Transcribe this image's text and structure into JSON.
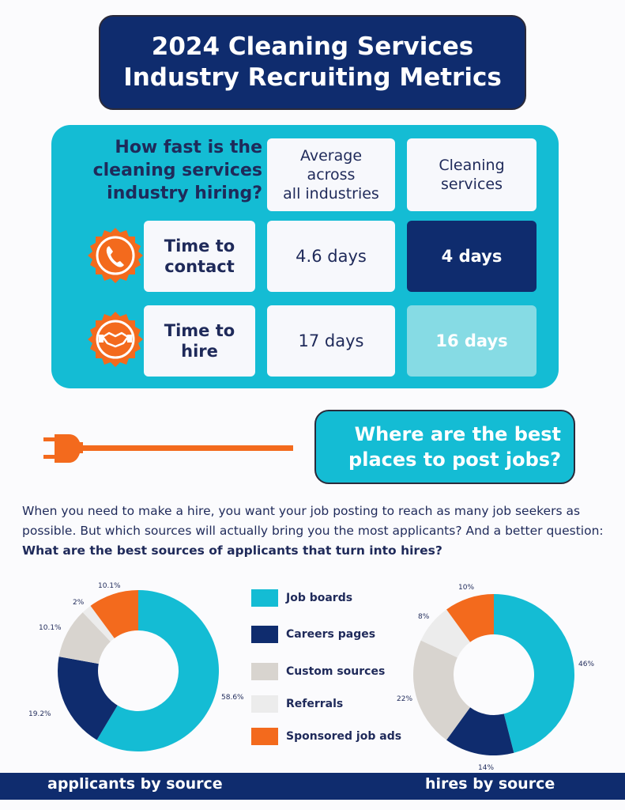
{
  "title": {
    "line1": "2024 Cleaning Services",
    "line2": "Industry Recruiting Metrics"
  },
  "speed": {
    "question": [
      "How fast is the",
      "cleaning services",
      "industry hiring?"
    ],
    "col_headers": [
      [
        "Average",
        "across",
        "all industries"
      ],
      [
        "Cleaning",
        "services"
      ]
    ],
    "rows": [
      {
        "label": [
          "Time to",
          "contact"
        ],
        "icon": "phone-icon",
        "average": "4.6 days",
        "cleaning": "4 days"
      },
      {
        "label": [
          "Time to",
          "hire"
        ],
        "icon": "handshake-icon",
        "average": "17 days",
        "cleaning": "16 days"
      }
    ]
  },
  "section2": {
    "heading": [
      "Where are the best",
      "places to post jobs?"
    ]
  },
  "intro": {
    "text": "When you need to make a hire, you want your job posting to reach as many job seekers as possible. But which sources will actually bring you the most applicants? And a better question: ",
    "bold": "What are the best sources of applicants that turn into hires?"
  },
  "colors": {
    "navy": "#0f2c6e",
    "cyan": "#14bcd4",
    "orange": "#f36a1d",
    "light_cyan": "#86dbe4"
  },
  "legend": [
    {
      "label": "Job boards",
      "color": "#14bcd4"
    },
    {
      "label": "Careers pages",
      "color": "#0f2c6e"
    },
    {
      "label": "Custom sources",
      "color": "#d8d4cf"
    },
    {
      "label": "Referrals",
      "color": "#ececec"
    },
    {
      "label": "Sponsored job ads",
      "color": "#f36a1d"
    }
  ],
  "footer": {
    "left": "applicants by source",
    "right": "hires by source"
  },
  "chart_data": [
    {
      "type": "pie",
      "title": "applicants by source",
      "categories": [
        "Job boards",
        "Careers pages",
        "Custom sources",
        "Referrals",
        "Sponsored job ads"
      ],
      "values": [
        58.6,
        19.2,
        10.1,
        2,
        10.1
      ],
      "labels": [
        "58.6%",
        "19.2%",
        "10.1%",
        "2%",
        "10.1%"
      ]
    },
    {
      "type": "pie",
      "title": "hires by source",
      "categories": [
        "Job boards",
        "Careers pages",
        "Custom sources",
        "Referrals",
        "Sponsored job ads"
      ],
      "values": [
        46,
        14,
        22,
        8,
        10
      ],
      "labels": [
        "46%",
        "14%",
        "22%",
        "8%",
        "10%"
      ]
    }
  ]
}
